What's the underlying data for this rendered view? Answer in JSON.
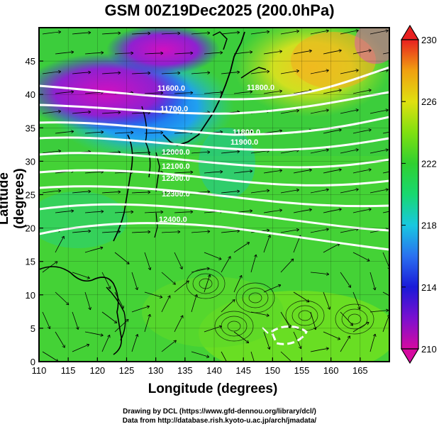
{
  "title": "GSM 00Z19Dec2025 (200.0hPa)",
  "axes": {
    "xlabel": "Longitude (degrees)",
    "ylabel": "Latitude  (degrees)",
    "xticks": [
      "110",
      "115",
      "120",
      "125",
      "130",
      "135",
      "140",
      "145",
      "150",
      "155",
      "160",
      "165"
    ],
    "yticks": [
      "0",
      "5",
      "10",
      "15",
      "20",
      "25",
      "30",
      "35",
      "40",
      "45"
    ],
    "xlim": [
      110,
      170
    ],
    "ylim": [
      0,
      50
    ]
  },
  "colorbar": {
    "labels": [
      "230",
      "226",
      "222",
      "218",
      "214",
      "210"
    ],
    "range": [
      210,
      230
    ]
  },
  "contour_labels": [
    "11600.0",
    "11700.0",
    "11800.0",
    "11900.0",
    "12000.0",
    "12100.0",
    "12200.0",
    "12300.0",
    "12400.0",
    "11800.0"
  ],
  "credits": {
    "line1": "Drawing by DCL (https://www.gfd-dennou.org/library/dcl/)",
    "line2": "Data from http://database.rish.kyoto-u.ac.jp/arch/jmadata/"
  }
}
